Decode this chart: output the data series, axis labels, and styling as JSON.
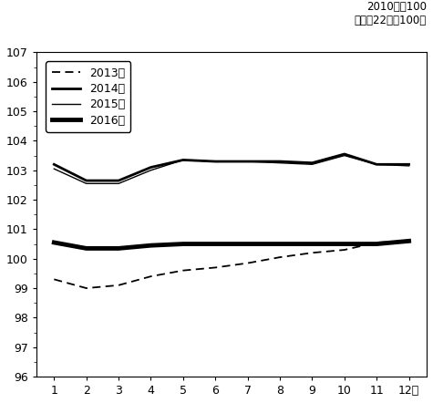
{
  "months": [
    1,
    2,
    3,
    4,
    5,
    6,
    7,
    8,
    9,
    10,
    11,
    12
  ],
  "series": {
    "2013年": {
      "values": [
        99.3,
        99.0,
        99.1,
        99.4,
        99.6,
        99.7,
        99.85,
        100.05,
        100.2,
        100.3,
        100.55,
        100.6
      ],
      "linestyle": "dashed",
      "linewidth": 1.3,
      "color": "#000000",
      "dashes": [
        5,
        3
      ]
    },
    "2014年": {
      "values": [
        103.2,
        102.65,
        102.65,
        103.1,
        103.35,
        103.3,
        103.3,
        103.3,
        103.25,
        103.55,
        103.2,
        103.2
      ],
      "linestyle": "solid",
      "linewidth": 2.0,
      "color": "#000000"
    },
    "2015年": {
      "values": [
        103.05,
        102.55,
        102.55,
        103.0,
        103.35,
        103.3,
        103.3,
        103.25,
        103.2,
        103.5,
        103.2,
        103.15
      ],
      "linestyle": "solid",
      "linewidth": 1.0,
      "color": "#000000"
    },
    "2016年": {
      "values": [
        100.55,
        100.35,
        100.35,
        100.45,
        100.5,
        100.5,
        100.5,
        100.5,
        100.5,
        100.5,
        100.5,
        100.6
      ],
      "linestyle": "solid",
      "linewidth": 3.5,
      "color": "#000000"
    }
  },
  "ylim": [
    96,
    107
  ],
  "yticks": [
    96,
    97,
    98,
    99,
    100,
    101,
    102,
    103,
    104,
    105,
    106,
    107
  ],
  "xtick_labels": [
    "1",
    "2",
    "3",
    "4",
    "5",
    "6",
    "7",
    "8",
    "9",
    "10",
    "11",
    "12月"
  ],
  "subtitle": "2010年＝100\n（平成22年＝100）",
  "legend_order": [
    "2013年",
    "2014年",
    "2015年",
    "2016年"
  ],
  "legend_linewidths": [
    1.3,
    2.0,
    1.0,
    3.5
  ],
  "legend_linestyles": [
    "dashed",
    "solid",
    "solid",
    "solid"
  ],
  "background_color": "#ffffff"
}
